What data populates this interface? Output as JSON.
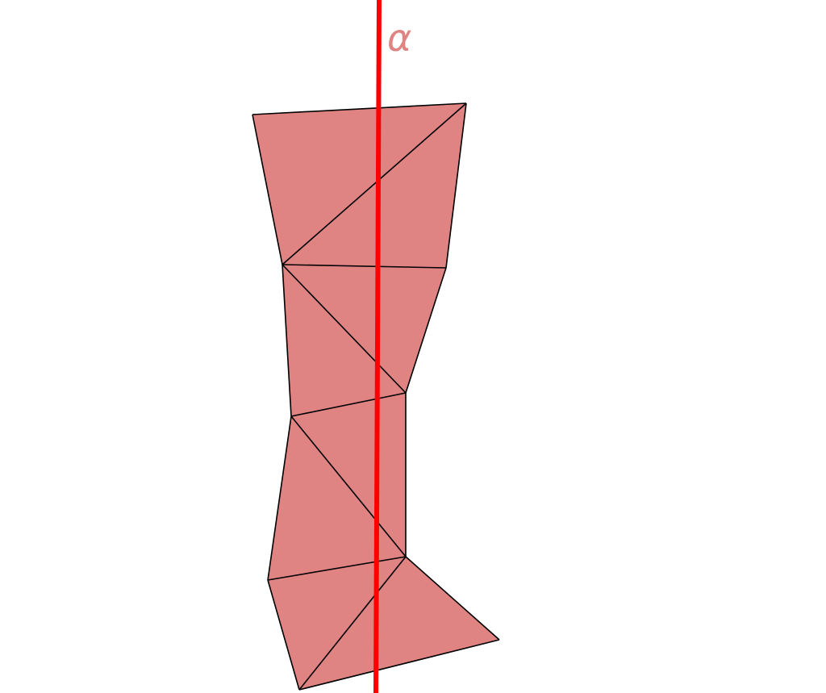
{
  "diagram": {
    "title": "",
    "axis_label": "α",
    "colors": {
      "fill": "#df8383",
      "edge": "#000000",
      "axis": "#ff0000",
      "label": "#df8383",
      "background": "#ffffff"
    }
  }
}
